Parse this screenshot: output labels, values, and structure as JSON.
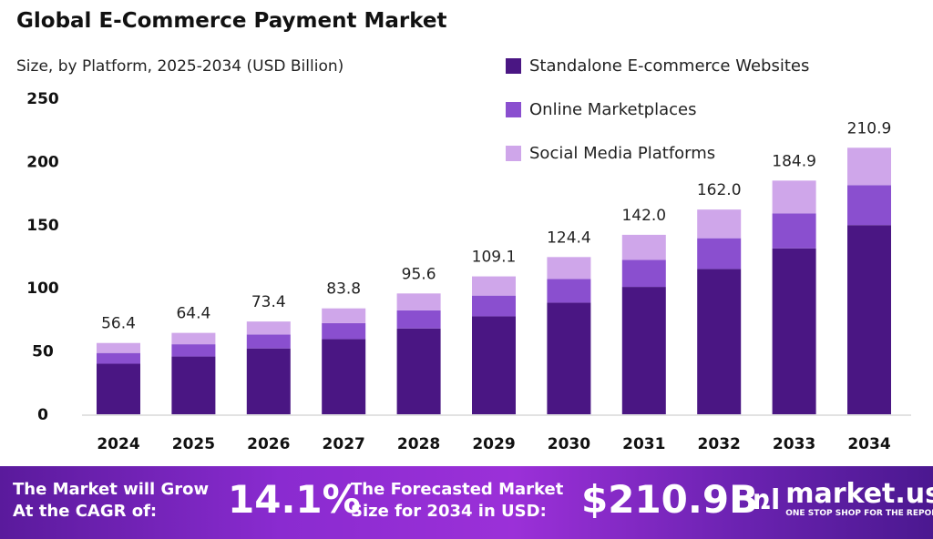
{
  "chart_data": {
    "type": "bar",
    "stacked": true,
    "title": "Global E-Commerce Payment Market",
    "subtitle": "Size, by Platform, 2025-2034 (USD Billion)",
    "categories": [
      "2024",
      "2025",
      "2026",
      "2027",
      "2028",
      "2029",
      "2030",
      "2031",
      "2032",
      "2033",
      "2034"
    ],
    "totals": [
      56.4,
      64.4,
      73.4,
      83.8,
      95.6,
      109.1,
      124.4,
      142.0,
      162.0,
      184.9,
      210.9
    ],
    "total_labels": [
      "56.4",
      "64.4",
      "73.4",
      "83.8",
      "95.6",
      "109.1",
      "124.4",
      "142.0",
      "162.0",
      "184.9",
      "210.9"
    ],
    "series": [
      {
        "name": "Standalone E-commerce Websites",
        "color": "#4a1683",
        "values": [
          40.0,
          45.7,
          52.1,
          59.5,
          67.9,
          77.5,
          88.3,
          100.8,
          115.0,
          131.3,
          149.7
        ]
      },
      {
        "name": "Online Marketplaces",
        "color": "#8a4fcf",
        "values": [
          8.5,
          9.7,
          11.0,
          12.6,
          14.3,
          16.4,
          18.7,
          21.3,
          24.3,
          27.7,
          31.6
        ]
      },
      {
        "name": "Social Media Platforms",
        "color": "#cfa6ea",
        "values": [
          7.9,
          9.0,
          10.3,
          11.7,
          13.4,
          15.2,
          17.4,
          19.9,
          22.7,
          25.9,
          29.6
        ]
      }
    ],
    "ylim": [
      0,
      250
    ],
    "yticks": [
      "0",
      "50",
      "100",
      "150",
      "200",
      "250"
    ],
    "grid": false,
    "legend": "top-right"
  },
  "banner": {
    "cagr_text_1": "The Market will Grow",
    "cagr_text_2": "At the CAGR of:",
    "cagr_value": "14.1%",
    "forecast_text_1": "The Forecasted Market",
    "forecast_text_2": "Size for 2034 in USD:",
    "forecast_value": "$210.9B",
    "logo_name": "market.us",
    "logo_tagline": "ONE STOP SHOP FOR THE REPORTS"
  }
}
